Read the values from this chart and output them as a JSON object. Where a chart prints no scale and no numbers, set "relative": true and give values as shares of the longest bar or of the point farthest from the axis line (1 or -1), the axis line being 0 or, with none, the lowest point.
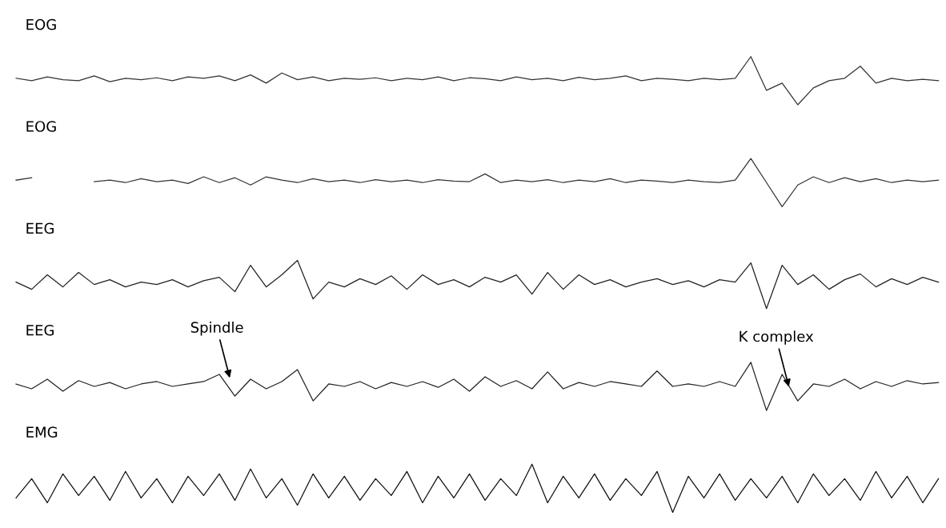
{
  "chart_data": [
    {
      "type": "line",
      "title": "EOG",
      "relative": true,
      "categories": [
        null,
        null,
        null,
        null,
        null,
        null,
        null,
        null,
        null,
        null,
        null,
        null,
        null,
        null,
        null,
        null,
        null,
        null,
        null,
        null,
        null,
        null,
        null,
        null,
        null,
        null,
        null,
        null,
        null,
        null,
        null,
        null,
        null,
        null,
        null,
        null,
        null,
        null,
        null,
        null,
        null,
        null,
        null,
        null,
        null,
        null,
        null,
        null,
        null,
        null,
        null,
        null,
        null,
        null,
        null,
        null,
        null,
        null,
        null,
        null
      ],
      "series": [
        {
          "color": "#333333",
          "values": [
            0.55,
            0.5,
            0.58,
            0.52,
            0.5,
            0.6,
            0.48,
            0.55,
            0.52,
            0.56,
            0.5,
            0.58,
            0.55,
            0.6,
            0.5,
            0.62,
            0.45,
            0.66,
            0.52,
            0.58,
            0.5,
            0.55,
            0.53,
            0.56,
            0.5,
            0.55,
            0.52,
            0.58,
            0.5,
            0.56,
            0.54,
            0.5,
            0.58,
            0.52,
            0.55,
            0.5,
            0.57,
            0.52,
            0.55,
            0.6,
            0.5,
            0.55,
            0.53,
            0.5,
            0.55,
            0.52,
            0.55,
            1.0,
            0.3,
            0.45,
            0.0,
            0.35,
            0.5,
            0.55,
            0.8,
            0.45,
            0.55,
            0.5,
            0.53,
            0.5
          ]
        }
      ]
    },
    {
      "type": "line",
      "title": "EOG",
      "relative": true,
      "categories": [
        null,
        null,
        null,
        null,
        null,
        null,
        null,
        null,
        null,
        null,
        null,
        null,
        null,
        null,
        null,
        null,
        null,
        null,
        null,
        null,
        null,
        null,
        null,
        null,
        null,
        null,
        null,
        null,
        null,
        null,
        null,
        null,
        null,
        null,
        null,
        null,
        null,
        null,
        null,
        null,
        null,
        null,
        null,
        null,
        null,
        null,
        null,
        null,
        null,
        null,
        null,
        null,
        null,
        null,
        null,
        null,
        null,
        null,
        null,
        null
      ],
      "series": [
        {
          "color": "#333333",
          "values": [
            0.55,
            0.6,
            null,
            null,
            null,
            0.52,
            0.55,
            0.5,
            0.58,
            0.52,
            0.55,
            0.48,
            0.62,
            0.5,
            0.6,
            0.45,
            0.62,
            0.55,
            0.5,
            0.58,
            0.52,
            0.55,
            0.5,
            0.56,
            0.52,
            0.55,
            0.5,
            0.56,
            0.53,
            0.52,
            0.68,
            0.5,
            0.55,
            0.52,
            0.56,
            0.5,
            0.55,
            0.52,
            0.58,
            0.5,
            0.55,
            0.53,
            0.5,
            0.55,
            0.52,
            0.5,
            0.55,
            1.0,
            0.5,
            0.0,
            0.45,
            0.62,
            0.5,
            0.6,
            0.52,
            0.58,
            0.5,
            0.55,
            0.52,
            0.55
          ]
        }
      ]
    },
    {
      "type": "line",
      "title": "EEG",
      "relative": true,
      "categories": [
        null,
        null,
        null,
        null,
        null,
        null,
        null,
        null,
        null,
        null,
        null,
        null,
        null,
        null,
        null,
        null,
        null,
        null,
        null,
        null,
        null,
        null,
        null,
        null,
        null,
        null,
        null,
        null,
        null,
        null,
        null,
        null,
        null,
        null,
        null,
        null,
        null,
        null,
        null,
        null,
        null,
        null,
        null,
        null,
        null,
        null,
        null,
        null,
        null,
        null,
        null,
        null,
        null,
        null,
        null,
        null,
        null,
        null,
        null,
        null
      ],
      "series": [
        {
          "color": "#222222",
          "values": [
            0.55,
            0.4,
            0.7,
            0.45,
            0.75,
            0.5,
            0.6,
            0.45,
            0.55,
            0.5,
            0.6,
            0.45,
            0.58,
            0.65,
            0.35,
            0.9,
            0.45,
            0.7,
            1.0,
            0.2,
            0.55,
            0.45,
            0.62,
            0.5,
            0.68,
            0.4,
            0.7,
            0.5,
            0.6,
            0.45,
            0.65,
            0.55,
            0.7,
            0.3,
            0.75,
            0.4,
            0.7,
            0.5,
            0.6,
            0.45,
            0.55,
            0.62,
            0.5,
            0.58,
            0.45,
            0.6,
            0.55,
            0.95,
            0.0,
            0.9,
            0.5,
            0.7,
            0.4,
            0.6,
            0.72,
            0.45,
            0.62,
            0.5,
            0.65,
            0.55
          ]
        }
      ]
    },
    {
      "type": "line",
      "title": "EEG",
      "relative": true,
      "categories": [
        null,
        null,
        null,
        null,
        null,
        null,
        null,
        null,
        null,
        null,
        null,
        null,
        null,
        null,
        null,
        null,
        null,
        null,
        null,
        null,
        null,
        null,
        null,
        null,
        null,
        null,
        null,
        null,
        null,
        null,
        null,
        null,
        null,
        null,
        null,
        null,
        null,
        null,
        null,
        null,
        null,
        null,
        null,
        null,
        null,
        null,
        null,
        null,
        null,
        null,
        null,
        null,
        null,
        null,
        null,
        null,
        null,
        null,
        null,
        null
      ],
      "annotations": [
        "Spindle",
        "K complex"
      ],
      "series": [
        {
          "color": "#222222",
          "values": [
            0.55,
            0.45,
            0.65,
            0.4,
            0.62,
            0.5,
            0.58,
            0.45,
            0.55,
            0.6,
            0.5,
            0.55,
            0.6,
            0.75,
            0.3,
            0.65,
            0.45,
            0.6,
            0.85,
            0.2,
            0.55,
            0.5,
            0.6,
            0.45,
            0.58,
            0.5,
            0.6,
            0.48,
            0.65,
            0.4,
            0.7,
            0.5,
            0.62,
            0.45,
            0.8,
            0.45,
            0.58,
            0.5,
            0.6,
            0.55,
            0.5,
            0.82,
            0.5,
            0.55,
            0.5,
            0.6,
            0.5,
            1.0,
            0.0,
            0.75,
            0.2,
            0.55,
            0.5,
            0.65,
            0.45,
            0.6,
            0.5,
            0.62,
            0.55,
            0.58
          ]
        }
      ]
    },
    {
      "type": "line",
      "title": "EMG",
      "relative": true,
      "categories": [
        null,
        null,
        null,
        null,
        null,
        null,
        null,
        null,
        null,
        null,
        null,
        null,
        null,
        null,
        null,
        null,
        null,
        null,
        null,
        null,
        null,
        null,
        null,
        null,
        null,
        null,
        null,
        null,
        null,
        null,
        null,
        null,
        null,
        null,
        null,
        null,
        null,
        null,
        null,
        null,
        null,
        null,
        null,
        null,
        null,
        null,
        null,
        null,
        null,
        null,
        null,
        null,
        null,
        null,
        null,
        null,
        null,
        null,
        null,
        null
      ],
      "series": [
        {
          "color": "#111111",
          "values": [
            0.3,
            0.7,
            0.2,
            0.8,
            0.35,
            0.75,
            0.25,
            0.85,
            0.3,
            0.7,
            0.2,
            0.75,
            0.35,
            0.8,
            0.25,
            0.9,
            0.3,
            0.7,
            0.15,
            0.8,
            0.3,
            0.75,
            0.25,
            0.7,
            0.35,
            0.85,
            0.2,
            0.75,
            0.3,
            0.8,
            0.25,
            0.7,
            0.35,
            1.0,
            0.2,
            0.75,
            0.3,
            0.8,
            0.25,
            0.7,
            0.35,
            0.85,
            0.0,
            0.75,
            0.3,
            0.8,
            0.25,
            0.7,
            0.3,
            0.75,
            0.2,
            0.8,
            0.35,
            0.7,
            0.25,
            0.85,
            0.3,
            0.75,
            0.2,
            0.7
          ]
        }
      ]
    }
  ]
}
